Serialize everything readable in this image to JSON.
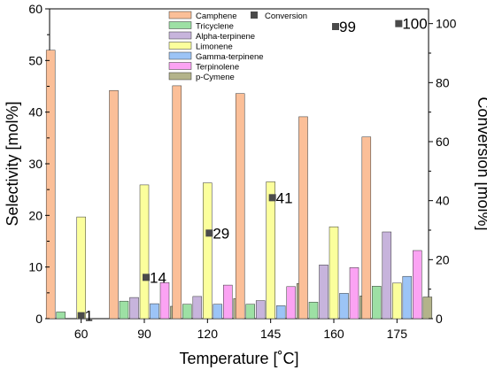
{
  "chart_data": {
    "type": "bar",
    "categories": [
      "60",
      "90",
      "120",
      "145",
      "160",
      "175"
    ],
    "xlabel": "Temperature [˚C]",
    "ylabel": "Selectivity [mol%]",
    "y2label": "Conversion [mol%]",
    "ylim": [
      0,
      60
    ],
    "y2lim": [
      0,
      105
    ],
    "yticks": [
      "0",
      "10",
      "20",
      "30",
      "40",
      "50",
      "60"
    ],
    "y2ticks": [
      "0",
      "20",
      "40",
      "60",
      "80",
      "100"
    ],
    "grid": false,
    "legend_position": "top",
    "series": [
      {
        "name": "Camphene",
        "color": "#fbbf98",
        "values": [
          52,
          44.2,
          45.1,
          43.6,
          39.1,
          35.2
        ]
      },
      {
        "name": "Tricyclene",
        "color": "#9de0a4",
        "values": [
          1.3,
          3.4,
          2.8,
          2.8,
          3.2,
          6.3
        ]
      },
      {
        "name": "Alpha-terpinene",
        "color": "#c7b4dc",
        "values": [
          0,
          4.1,
          4.3,
          3.5,
          10.4,
          16.8
        ]
      },
      {
        "name": "Limonene",
        "color": "#fbff9c",
        "values": [
          19.7,
          25.9,
          26.3,
          26.5,
          17.8,
          6.9
        ]
      },
      {
        "name": "Gamma-terpinene",
        "color": "#9cc4f6",
        "values": [
          0,
          2.9,
          2.8,
          2.5,
          4.9,
          8.2
        ]
      },
      {
        "name": "Terpinolene",
        "color": "#fba3f3",
        "values": [
          0,
          7.0,
          6.5,
          6.2,
          9.9,
          13.2
        ]
      },
      {
        "name": "p-Cymene",
        "color": "#b3b38a",
        "values": [
          0,
          2.4,
          3.9,
          6.8,
          4.4,
          4.2
        ]
      }
    ],
    "conversion": {
      "name": "Conversion",
      "color": "#4a4a4a",
      "values": [
        1,
        14,
        29,
        41,
        99,
        100
      ],
      "labels": [
        "1",
        "14",
        "29",
        "41",
        "99",
        "100"
      ]
    }
  }
}
